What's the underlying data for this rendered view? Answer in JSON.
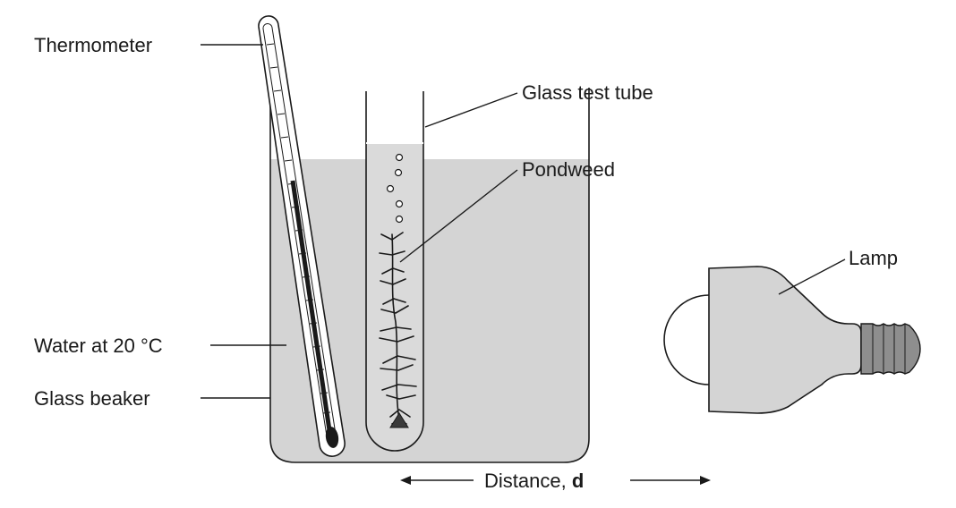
{
  "labels": {
    "thermometer": "Thermometer",
    "test_tube": "Glass test tube",
    "pondweed": "Pondweed",
    "lamp": "Lamp",
    "water": "Water at 20 °C",
    "beaker": "Glass beaker",
    "distance_prefix": "Distance, ",
    "distance_var": "d"
  },
  "colors": {
    "water": "#d4d4d4",
    "lamp_body": "#d4d4d4",
    "lamp_cap": "#8e8e8e",
    "ink": "#1a1a1a"
  }
}
